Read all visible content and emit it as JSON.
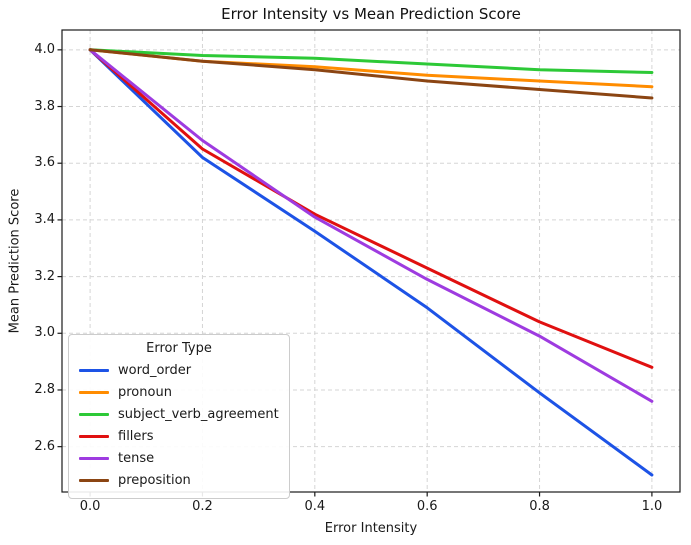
{
  "figure": {
    "title": "Error Intensity vs Mean Prediction Score",
    "xlabel": "Error Intensity",
    "ylabel": "Mean Prediction Score",
    "legend_title": "Error Type"
  },
  "chart_data": {
    "type": "line",
    "title": "Error Intensity vs Mean Prediction Score",
    "xlabel": "Error Intensity",
    "ylabel": "Mean Prediction Score",
    "legend_title": "Error Type",
    "legend_position": "lower left",
    "grid": true,
    "grid_style": "dashed",
    "x": [
      0.0,
      0.2,
      0.4,
      0.6,
      0.8,
      1.0
    ],
    "x_tick_labels": [
      "0.0",
      "0.2",
      "0.4",
      "0.6",
      "0.8",
      "1.0"
    ],
    "y_ticks": [
      2.6,
      2.8,
      3.0,
      3.2,
      3.4,
      3.6,
      3.8,
      4.0
    ],
    "y_tick_labels": [
      "2.6",
      "2.8",
      "3.0",
      "3.2",
      "3.4",
      "3.6",
      "3.8",
      "4.0"
    ],
    "xlim": [
      -0.05,
      1.05
    ],
    "ylim": [
      2.44,
      4.07
    ],
    "series": [
      {
        "name": "word_order",
        "color": "#1d53e6",
        "values": [
          4.0,
          3.62,
          3.36,
          3.09,
          2.79,
          2.5
        ]
      },
      {
        "name": "pronoun",
        "color": "#ff8c00",
        "values": [
          4.0,
          3.96,
          3.94,
          3.91,
          3.89,
          3.87
        ]
      },
      {
        "name": "subject_verb_agreement",
        "color": "#2dc937",
        "values": [
          4.0,
          3.98,
          3.97,
          3.95,
          3.93,
          3.92
        ]
      },
      {
        "name": "fillers",
        "color": "#e01010",
        "values": [
          4.0,
          3.65,
          3.42,
          3.23,
          3.04,
          2.88
        ]
      },
      {
        "name": "tense",
        "color": "#9e3be0",
        "values": [
          4.0,
          3.68,
          3.41,
          3.19,
          2.99,
          2.76
        ]
      },
      {
        "name": "preposition",
        "color": "#8b4513",
        "values": [
          4.0,
          3.96,
          3.93,
          3.89,
          3.86,
          3.83
        ]
      }
    ]
  },
  "colors": {
    "background": "#ffffff",
    "spine": "#1a1a1a",
    "grid": "#d5d5d5",
    "tick": "#1a1a1a",
    "text": "#1a1a1a",
    "legend_border": "#cccccc"
  }
}
